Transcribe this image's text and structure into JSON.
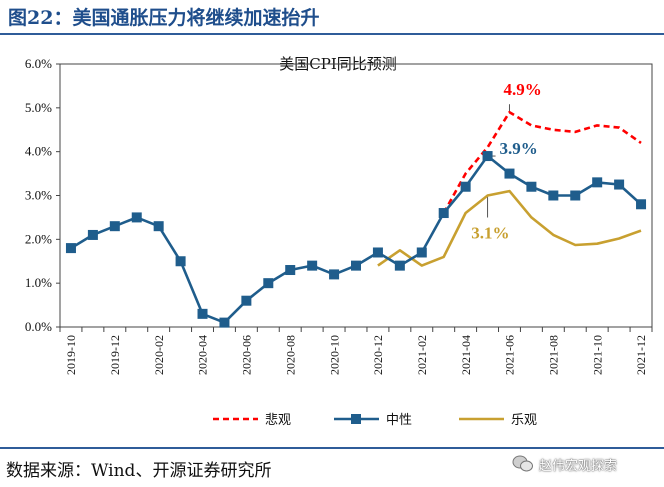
{
  "header": {
    "figure_title": "图22：美国通胀压力将继续加速抬升"
  },
  "footer": {
    "source": "数据来源：Wind、开源证券研究所",
    "watermark": "赵伟宏观探索"
  },
  "chart_data": {
    "type": "line",
    "title": "美国CPI同比预测",
    "xlabel": "",
    "ylabel": "",
    "ylim": [
      0,
      6
    ],
    "y_ticks": [
      "0.0%",
      "1.0%",
      "2.0%",
      "3.0%",
      "4.0%",
      "5.0%",
      "6.0%"
    ],
    "x": [
      "2019-10",
      "2019-11",
      "2019-12",
      "2020-01",
      "2020-02",
      "2020-03",
      "2020-04",
      "2020-05",
      "2020-06",
      "2020-07",
      "2020-08",
      "2020-09",
      "2020-10",
      "2020-11",
      "2020-12",
      "2021-01",
      "2021-02",
      "2021-03",
      "2021-04",
      "2021-05",
      "2021-06",
      "2021-07",
      "2021-08",
      "2021-09",
      "2021-10",
      "2021-11",
      "2021-12"
    ],
    "x_tick_labels": [
      "2019-10",
      "2019-12",
      "2020-02",
      "2020-04",
      "2020-06",
      "2020-08",
      "2020-10",
      "2020-12",
      "2021-02",
      "2021-04",
      "2021-06",
      "2021-08",
      "2021-10",
      "2021-12"
    ],
    "grid": false,
    "legend_position": "bottom",
    "series": [
      {
        "name": "悲观",
        "color": "#ff0000",
        "style": "dashed",
        "values": [
          null,
          null,
          null,
          null,
          null,
          null,
          null,
          null,
          null,
          null,
          null,
          null,
          null,
          null,
          null,
          null,
          null,
          2.6,
          3.5,
          4.1,
          4.9,
          4.6,
          4.5,
          4.45,
          4.6,
          4.55,
          4.2
        ]
      },
      {
        "name": "中性",
        "color": "#1f5d8c",
        "style": "solid-square-markers",
        "values": [
          1.8,
          2.1,
          2.3,
          2.5,
          2.3,
          1.5,
          0.3,
          0.1,
          0.6,
          1.0,
          1.3,
          1.4,
          1.2,
          1.4,
          1.7,
          1.4,
          1.7,
          2.6,
          3.2,
          3.9,
          3.5,
          3.2,
          3.0,
          3.0,
          3.3,
          3.25,
          2.8
        ]
      },
      {
        "name": "乐观",
        "color": "#c8a030",
        "style": "solid",
        "values": [
          null,
          null,
          null,
          null,
          null,
          null,
          null,
          null,
          null,
          null,
          null,
          null,
          null,
          null,
          1.4,
          1.75,
          1.4,
          1.6,
          2.6,
          3.0,
          3.1,
          2.5,
          2.1,
          1.87,
          1.9,
          2.02,
          2.2
        ]
      }
    ],
    "annotations": [
      {
        "text": "4.9%",
        "series": "悲观",
        "x": "2021-06",
        "color": "#ff0000"
      },
      {
        "text": "3.9%",
        "series": "中性",
        "x": "2021-05",
        "color": "#1f5d8c"
      },
      {
        "text": "3.1%",
        "series": "乐观",
        "x": "2021-05",
        "color": "#c8a030"
      }
    ]
  }
}
